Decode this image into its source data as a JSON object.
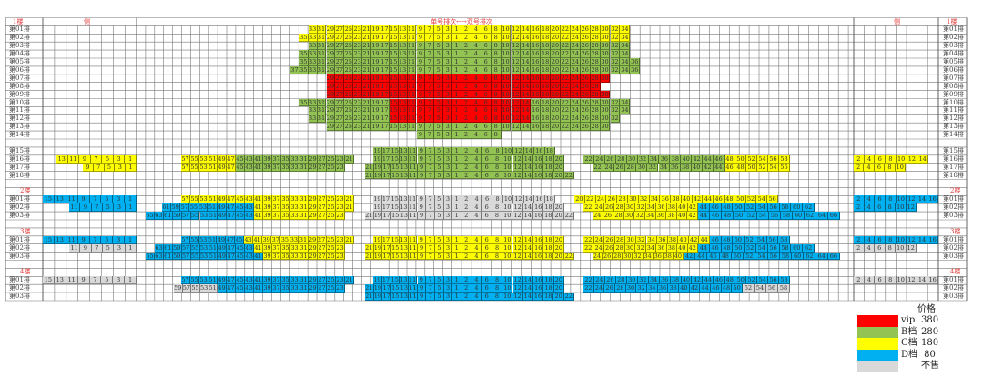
{
  "header": {
    "floor_left": "1楼",
    "side_left": "侧",
    "center_left": "单号排次←",
    "center_right": "→双号排次",
    "side_right": "侧",
    "floor_right": "1楼"
  },
  "tiers": {
    "V": "#ff0000",
    "B": "#92c353",
    "C": "#ffff00",
    "D": "#00b0f0",
    "N": "#d9d9d9"
  },
  "rows": [
    {
      "kind": "header"
    },
    {
      "label": "第01排",
      "blocks": [
        [
          "C",
          33,
          1
        ],
        [
          "C",
          2,
          34
        ]
      ]
    },
    {
      "label": "第02排",
      "blocks": [
        [
          "C",
          35,
          1
        ],
        [
          "C",
          2,
          34
        ]
      ]
    },
    {
      "label": "第03排",
      "blocks": [
        [
          "B",
          33,
          1
        ],
        [
          "B",
          2,
          34
        ]
      ]
    },
    {
      "label": "第04排",
      "blocks": [
        [
          "B",
          35,
          1
        ],
        [
          "B",
          2,
          34
        ]
      ]
    },
    {
      "label": "第05排",
      "blocks": [
        [
          "B",
          35,
          1
        ],
        [
          "B",
          2,
          36
        ]
      ]
    },
    {
      "label": "第06排",
      "blocks": [
        [
          "B",
          37,
          1
        ],
        [
          "B",
          2,
          36
        ]
      ]
    },
    {
      "label": "第07排",
      "blocks": [
        [
          "V",
          29,
          1
        ],
        [
          "V",
          2,
          30
        ]
      ]
    },
    {
      "label": "第08排",
      "blocks": [
        [
          "V",
          29,
          1
        ],
        [
          "V",
          2,
          28
        ]
      ]
    },
    {
      "label": "第09排",
      "blocks": [
        [
          "V",
          29,
          1
        ],
        [
          "V",
          2,
          30
        ]
      ]
    },
    {
      "label": "第10排",
      "blocks": [
        [
          "B",
          35,
          17
        ],
        [
          "V",
          15,
          1
        ],
        [
          "V",
          2,
          14
        ],
        [
          "B",
          16,
          34
        ]
      ]
    },
    {
      "label": "第11排",
      "blocks": [
        [
          "B",
          33,
          17
        ],
        [
          "V",
          15,
          1
        ],
        [
          "V",
          2,
          14
        ],
        [
          "B",
          16,
          34
        ]
      ]
    },
    {
      "label": "第12排",
      "blocks": [
        [
          "B",
          33,
          17
        ],
        [
          "V",
          15,
          1
        ],
        [
          "V",
          2,
          14
        ],
        [
          "B",
          16,
          32
        ]
      ]
    },
    {
      "label": "第13排",
      "blocks": [
        [
          "B",
          29,
          1
        ],
        [
          "B",
          2,
          30
        ]
      ]
    },
    {
      "label": "第14排",
      "blocks": [
        [
          "B",
          9,
          1
        ],
        [
          "B",
          2,
          8
        ]
      ]
    },
    {
      "kind": "blank"
    },
    {
      "label": "第15排",
      "blocks": [
        [
          "B",
          19,
          1
        ],
        [
          "B",
          2,
          18
        ]
      ]
    },
    {
      "label": "第16排",
      "blocks": [
        [
          "C",
          13,
          1
        ],
        [
          "C",
          57,
          47
        ],
        [
          "B",
          45,
          21
        ],
        [
          "B",
          19,
          1
        ],
        [
          "B",
          2,
          20
        ],
        [
          "B",
          22,
          46
        ],
        [
          "C",
          48,
          58
        ],
        [
          "C",
          2,
          14
        ]
      ]
    },
    {
      "label": "第17排",
      "blocks": [
        [
          "C",
          9,
          1
        ],
        [
          "C",
          57,
          47
        ],
        [
          "B",
          45,
          23
        ],
        [
          "B",
          21,
          1
        ],
        [
          "B",
          2,
          20
        ],
        [
          "B",
          22,
          44
        ],
        [
          "C",
          46,
          56
        ],
        [
          "C",
          2,
          10
        ]
      ]
    },
    {
      "label": "第18排",
      "blocks": [
        [
          "B",
          21,
          1
        ],
        [
          "B",
          2,
          22
        ]
      ]
    },
    {
      "kind": "blank"
    },
    {
      "kind": "floor",
      "floor": "2楼"
    },
    {
      "label": "第01排",
      "blocks": [
        [
          "D",
          15,
          1
        ],
        [
          "C",
          57,
          21
        ],
        [
          "N",
          19,
          1
        ],
        [
          "N",
          2,
          18
        ],
        [
          "C",
          20,
          56
        ],
        [
          "D",
          2,
          16
        ]
      ]
    },
    {
      "label": "第02排",
      "blocks": [
        [
          "D",
          11,
          1
        ],
        [
          "D",
          61,
          43
        ],
        [
          "C",
          41,
          21
        ],
        [
          "N",
          19,
          1
        ],
        [
          "N",
          2,
          20
        ],
        [
          "C",
          22,
          42
        ],
        [
          "D",
          44,
          62
        ],
        [
          "D",
          2,
          12
        ]
      ]
    },
    {
      "label": "第03排",
      "blocks": [
        [
          "D",
          65,
          43
        ],
        [
          "C",
          41,
          23
        ],
        [
          "N",
          21,
          1
        ],
        [
          "N",
          2,
          22
        ],
        [
          "C",
          24,
          42
        ],
        [
          "D",
          44,
          66
        ]
      ]
    },
    {
      "kind": "blank"
    },
    {
      "kind": "floor",
      "floor": "3楼"
    },
    {
      "label": "第01排",
      "blocks": [
        [
          "D",
          15,
          1
        ],
        [
          "D",
          57,
          45
        ],
        [
          "C",
          43,
          21
        ],
        [
          "C",
          19,
          1
        ],
        [
          "C",
          2,
          20
        ],
        [
          "C",
          22,
          44
        ],
        [
          "D",
          46,
          58
        ],
        [
          "D",
          2,
          16
        ]
      ]
    },
    {
      "label": "第02排",
      "blocks": [
        [
          "N",
          11,
          1
        ],
        [
          "D",
          63,
          43
        ],
        [
          "C",
          41,
          23
        ],
        [
          "C",
          21,
          1
        ],
        [
          "C",
          2,
          20
        ],
        [
          "C",
          22,
          42
        ],
        [
          "D",
          44,
          62
        ],
        [
          "N",
          2,
          12
        ]
      ]
    },
    {
      "label": "第03排",
      "blocks": [
        [
          "D",
          65,
          41
        ],
        [
          "C",
          39,
          23
        ],
        [
          "C",
          21,
          1
        ],
        [
          "C",
          2,
          22
        ],
        [
          "C",
          24,
          40
        ],
        [
          "D",
          42,
          66
        ]
      ]
    },
    {
      "kind": "blank"
    },
    {
      "kind": "floor",
      "floor": "4楼"
    },
    {
      "label": "第01排",
      "blocks": [
        [
          "N",
          15,
          1
        ],
        [
          "D",
          57,
          21
        ],
        [
          "D",
          19,
          1
        ],
        [
          "D",
          2,
          20
        ],
        [
          "D",
          22,
          58
        ],
        [
          "N",
          2,
          16
        ]
      ]
    },
    {
      "label": "第02排",
      "blocks": [
        [
          "N",
          59,
          51
        ],
        [
          "D",
          49,
          23
        ],
        [
          "D",
          21,
          1
        ],
        [
          "D",
          2,
          20
        ],
        [
          "D",
          22,
          50
        ],
        [
          "N",
          52,
          58
        ]
      ]
    },
    {
      "label": "第03排",
      "blocks": [
        [
          "D",
          21,
          1
        ],
        [
          "D",
          2,
          22
        ]
      ]
    }
  ],
  "legend": {
    "title": "价格",
    "items": [
      {
        "tier": "V",
        "name": "vip",
        "price": "380"
      },
      {
        "tier": "B",
        "name": "B档",
        "price": "280"
      },
      {
        "tier": "C",
        "name": "C档",
        "price": "180"
      },
      {
        "tier": "D",
        "name": "D档",
        "price": " 80"
      },
      {
        "tier": "N",
        "name": "",
        "price": "不售"
      }
    ]
  }
}
